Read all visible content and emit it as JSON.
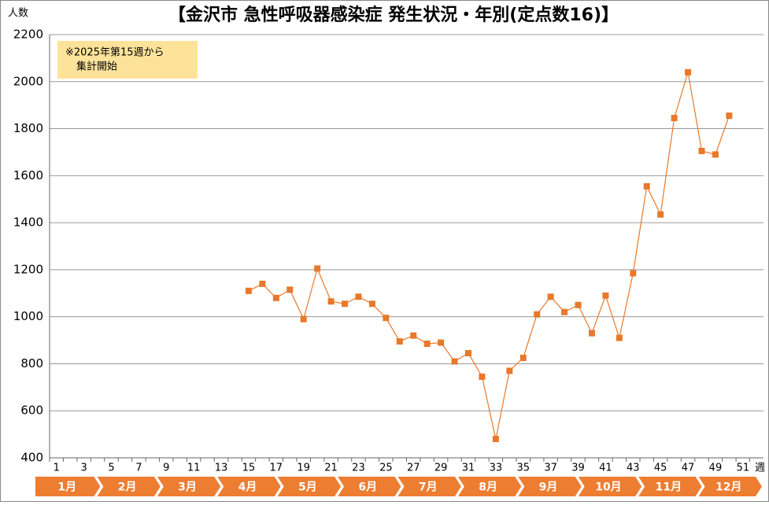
{
  "chart_data": {
    "type": "line",
    "title": "【金沢市 急性呼吸器感染症 発生状況・年別(定点数16)】",
    "y_label": "人数",
    "x_label": "週",
    "annotation": [
      "※2025年第15週から",
      "集計開始"
    ],
    "categories": [
      1,
      null,
      3,
      null,
      5,
      null,
      7,
      null,
      9,
      null,
      11,
      null,
      13,
      null,
      15,
      null,
      17,
      null,
      19,
      null,
      21,
      null,
      23,
      null,
      25,
      null,
      27,
      null,
      29,
      null,
      31,
      null,
      33,
      null,
      35,
      null,
      37,
      null,
      39,
      null,
      41,
      null,
      43,
      null,
      45,
      null,
      47,
      null,
      49,
      null,
      51,
      null
    ],
    "series": [
      {
        "color": "#e8782a",
        "values": [
          null,
          null,
          null,
          null,
          null,
          null,
          null,
          null,
          null,
          null,
          null,
          null,
          null,
          null,
          1110,
          1140,
          1080,
          1115,
          990,
          1205,
          1065,
          1055,
          1085,
          1055,
          995,
          895,
          920,
          885,
          890,
          810,
          845,
          745,
          480,
          770,
          825,
          1010,
          1085,
          1020,
          1050,
          930,
          1090,
          910,
          1185,
          1555,
          1435,
          1845,
          2040,
          1705,
          1690,
          1855,
          null,
          null
        ]
      }
    ],
    "ylim": [
      400,
      2200
    ],
    "yticks": [
      400,
      600,
      800,
      1000,
      1200,
      1400,
      1600,
      1800,
      2000,
      2200
    ],
    "grid": true,
    "months": [
      "1月",
      "2月",
      "3月",
      "4月",
      "5月",
      "6月",
      "7月",
      "8月",
      "9月",
      "10月",
      "11月",
      "12月"
    ],
    "month_color": "#ed7d31"
  }
}
